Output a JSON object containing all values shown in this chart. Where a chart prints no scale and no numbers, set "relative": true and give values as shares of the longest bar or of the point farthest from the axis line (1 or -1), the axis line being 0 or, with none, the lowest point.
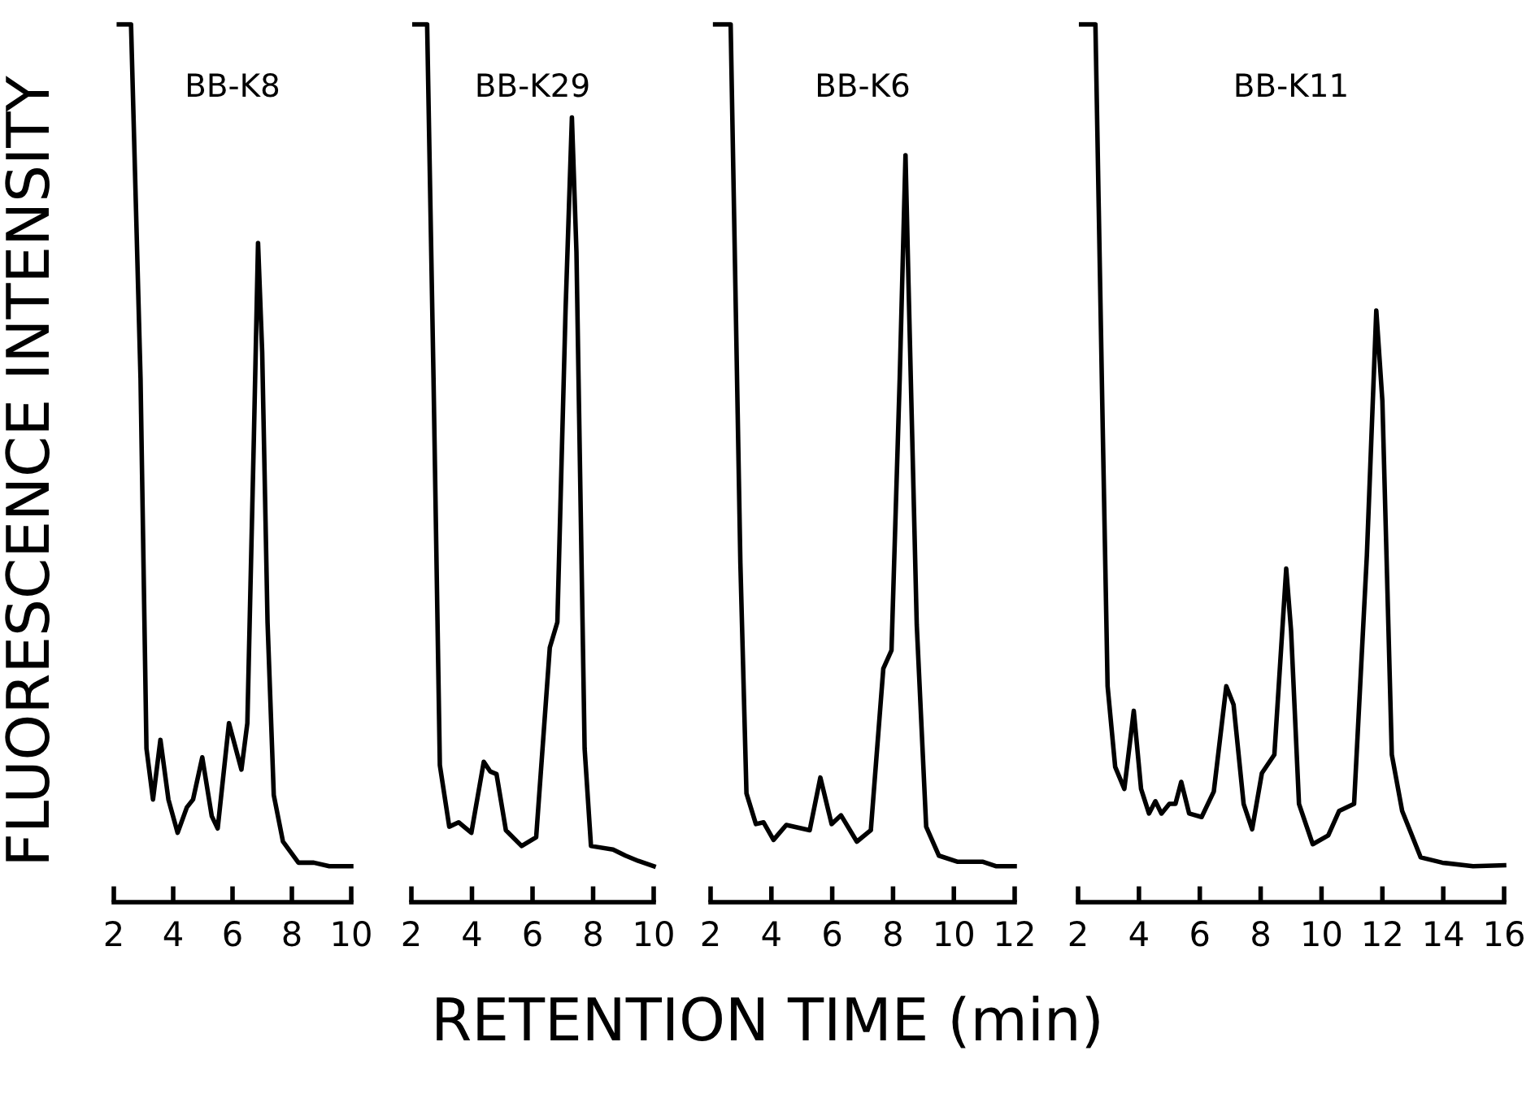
{
  "chart_data": [
    {
      "type": "line",
      "title": "BB-K8",
      "ylabel": "FLUORESCENCE INTENSITY",
      "xlabel": "RETENTION TIME (min)",
      "relative": true,
      "xlim": [
        2,
        10
      ],
      "xticks": [
        2,
        4,
        6,
        8,
        10
      ],
      "tick_labels": "x",
      "color": "#000000",
      "x": [
        2.17,
        2.58,
        2.9,
        3.1,
        3.32,
        3.57,
        3.84,
        4.15,
        4.46,
        4.67,
        4.98,
        5.3,
        5.5,
        5.88,
        6.3,
        6.5,
        6.72,
        6.86,
        7.0,
        7.18,
        7.39,
        7.7,
        8.22,
        8.74,
        9.26,
        10.0
      ],
      "values": [
        1.0,
        1.0,
        0.597,
        0.175,
        0.117,
        0.185,
        0.117,
        0.079,
        0.108,
        0.117,
        0.165,
        0.098,
        0.084,
        0.204,
        0.151,
        0.204,
        0.53,
        0.751,
        0.626,
        0.319,
        0.122,
        0.069,
        0.045,
        0.045,
        0.041,
        0.041
      ]
    },
    {
      "type": "line",
      "title": "BB-K29",
      "relative": true,
      "xlim": [
        2,
        10
      ],
      "xticks": [
        2,
        4,
        6,
        8,
        10
      ],
      "tick_labels": "x",
      "color": "#000000",
      "x": [
        2.1,
        2.52,
        2.73,
        2.94,
        3.25,
        3.56,
        3.98,
        4.39,
        4.6,
        4.81,
        5.12,
        5.64,
        6.12,
        6.57,
        6.82,
        7.09,
        7.3,
        7.45,
        7.72,
        7.93,
        8.66,
        9.07,
        9.49,
        10.0
      ],
      "values": [
        1.0,
        1.0,
        0.597,
        0.156,
        0.086,
        0.091,
        0.079,
        0.16,
        0.149,
        0.146,
        0.082,
        0.064,
        0.074,
        0.29,
        0.319,
        0.674,
        0.894,
        0.741,
        0.175,
        0.064,
        0.06,
        0.053,
        0.047,
        0.041
      ]
    },
    {
      "type": "line",
      "title": "BB-K6",
      "relative": true,
      "xlim": [
        2,
        12
      ],
      "xticks": [
        2,
        4,
        6,
        8,
        10,
        12
      ],
      "tick_labels": "x",
      "color": "#000000",
      "x": [
        2.15,
        2.66,
        2.98,
        3.18,
        3.49,
        3.74,
        4.07,
        4.49,
        5.26,
        5.61,
        5.98,
        6.29,
        6.81,
        7.27,
        7.68,
        7.95,
        8.22,
        8.41,
        8.51,
        8.78,
        9.09,
        9.51,
        10.13,
        10.96,
        11.38,
        12.0
      ],
      "values": [
        1.0,
        1.0,
        0.386,
        0.124,
        0.089,
        0.091,
        0.071,
        0.088,
        0.082,
        0.142,
        0.089,
        0.099,
        0.069,
        0.082,
        0.266,
        0.287,
        0.597,
        0.851,
        0.703,
        0.316,
        0.086,
        0.053,
        0.046,
        0.046,
        0.041,
        0.041
      ]
    },
    {
      "type": "line",
      "title": "BB-K11",
      "relative": true,
      "xlim": [
        2,
        16
      ],
      "xticks": [
        2,
        4,
        6,
        8,
        10,
        12,
        14,
        16
      ],
      "tick_labels": "x",
      "color": "#000000",
      "x": [
        2.1,
        2.57,
        2.81,
        2.97,
        3.22,
        3.52,
        3.83,
        4.07,
        4.33,
        4.54,
        4.74,
        5.0,
        5.2,
        5.39,
        5.65,
        6.06,
        6.46,
        6.87,
        7.11,
        7.44,
        7.72,
        8.04,
        8.45,
        8.84,
        9.0,
        9.26,
        9.71,
        10.22,
        10.58,
        11.07,
        11.49,
        11.8,
        12.0,
        12.31,
        12.65,
        13.26,
        13.97,
        14.98,
        16.0
      ],
      "values": [
        1.0,
        1.0,
        0.54,
        0.246,
        0.154,
        0.129,
        0.218,
        0.129,
        0.101,
        0.115,
        0.101,
        0.112,
        0.112,
        0.137,
        0.101,
        0.097,
        0.126,
        0.246,
        0.225,
        0.112,
        0.083,
        0.147,
        0.168,
        0.38,
        0.309,
        0.112,
        0.066,
        0.076,
        0.104,
        0.112,
        0.395,
        0.674,
        0.571,
        0.168,
        0.104,
        0.051,
        0.045,
        0.041,
        0.042
      ]
    }
  ]
}
